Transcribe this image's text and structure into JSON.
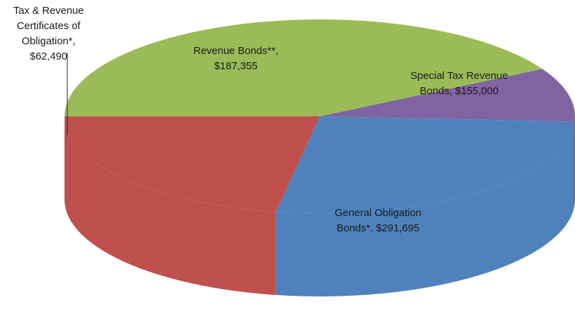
{
  "chart_data": {
    "type": "pie",
    "style": "3d",
    "slices": [
      {
        "label_lines": [
          "General Obligation",
          "Bonds*,  $291,695"
        ],
        "category": "General Obligation Bonds*",
        "value": 291695,
        "color": "#9BBB59"
      },
      {
        "label_lines": [
          "Tax & Revenue",
          "Certificates of",
          "Obligation*,",
          "$62,490"
        ],
        "category": "Tax & Revenue Certificates of Obligation*",
        "value": 62490,
        "color": "#8064A2"
      },
      {
        "label_lines": [
          "Revenue Bonds**,",
          "$187,355"
        ],
        "category": "Revenue Bonds**",
        "value": 187355,
        "color": "#4F81BD"
      },
      {
        "label_lines": [
          "Special Tax Revenue",
          "Bonds,  $155,000"
        ],
        "category": "Special Tax Revenue Bonds",
        "value": 155000,
        "color": "#C0504D"
      }
    ]
  }
}
